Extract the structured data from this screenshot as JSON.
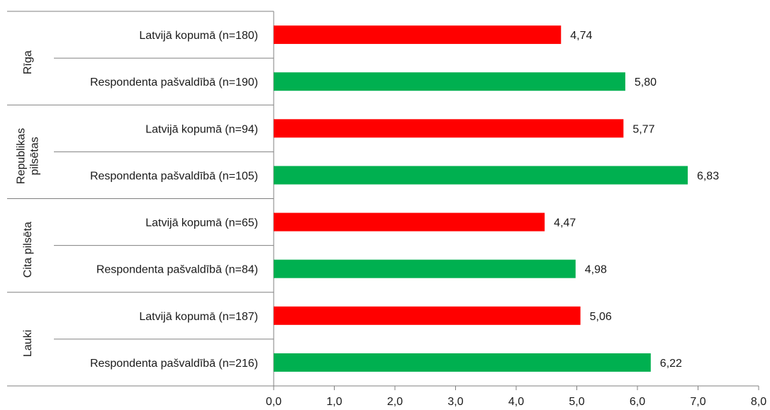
{
  "chart_data": {
    "type": "bar",
    "orientation": "horizontal",
    "groups": [
      {
        "label": [
          "Rīga"
        ],
        "bars": [
          {
            "label": "Latvijā kopumā (n=180)",
            "value": 4.74,
            "value_label": "4,74",
            "kind": "latvia"
          },
          {
            "label": "Respondenta pašvaldībā (n=190)",
            "value": 5.8,
            "value_label": "5,80",
            "kind": "municipality"
          }
        ]
      },
      {
        "label": [
          "Republikas",
          "pilsētas"
        ],
        "bars": [
          {
            "label": "Latvijā kopumā (n=94)",
            "value": 5.77,
            "value_label": "5,77",
            "kind": "latvia"
          },
          {
            "label": "Respondenta pašvaldībā (n=105)",
            "value": 6.83,
            "value_label": "6,83",
            "kind": "municipality"
          }
        ]
      },
      {
        "label": [
          "Cita pilsēta"
        ],
        "bars": [
          {
            "label": "Latvijā kopumā (n=65)",
            "value": 4.47,
            "value_label": "4,47",
            "kind": "latvia"
          },
          {
            "label": "Respondenta pašvaldībā (n=84)",
            "value": 4.98,
            "value_label": "4,98",
            "kind": "municipality"
          }
        ]
      },
      {
        "label": [
          "Lauki"
        ],
        "bars": [
          {
            "label": "Latvijā kopumā (n=187)",
            "value": 5.06,
            "value_label": "5,06",
            "kind": "latvia"
          },
          {
            "label": "Respondenta pašvaldībā (n=216)",
            "value": 6.22,
            "value_label": "6,22",
            "kind": "municipality"
          }
        ]
      }
    ],
    "xlim": [
      0,
      8
    ],
    "xticks": [
      "0,0",
      "1,0",
      "2,0",
      "3,0",
      "4,0",
      "5,0",
      "6,0",
      "7,0",
      "8,0"
    ],
    "colors": {
      "latvia": "#ff0000",
      "municipality": "#00b050"
    },
    "grid": false,
    "legend": false,
    "title": "",
    "xlabel": "",
    "ylabel": ""
  }
}
